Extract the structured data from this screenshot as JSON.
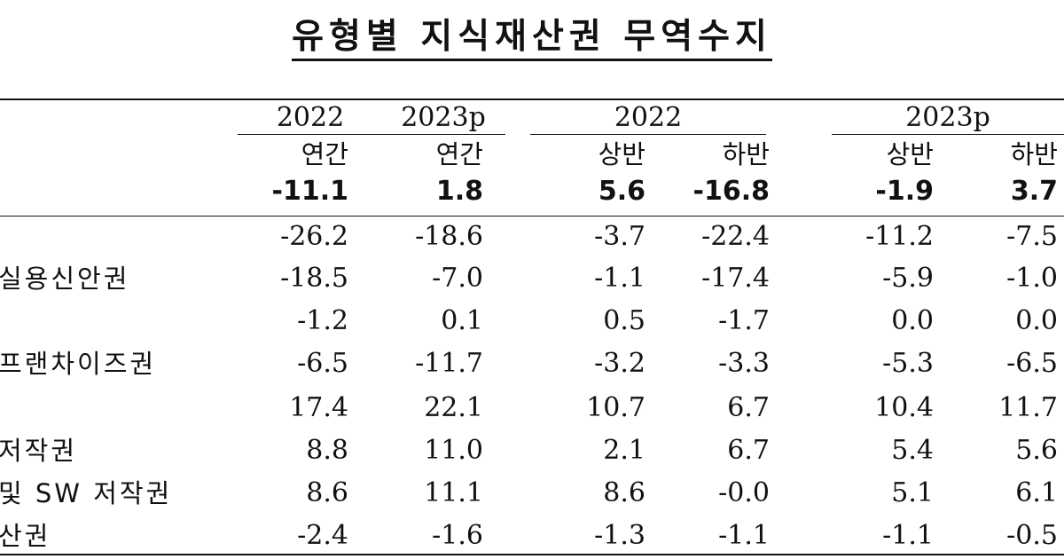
{
  "title": "유형별 지식재산권 무역수지",
  "header": {
    "group1_year": "2022",
    "group1b_year": "2023p",
    "group2_year": "2022",
    "group3_year": "2023p",
    "sub": [
      "연간",
      "연간",
      "상반",
      "하반",
      "상반",
      "하반"
    ]
  },
  "total": [
    "-11.1",
    "1.8",
    "5.6",
    "-16.8",
    "-1.9",
    "3.7"
  ],
  "rows": [
    {
      "label": "",
      "values": [
        "-26.2",
        "-18.6",
        "-3.7",
        "-22.4",
        "-11.2",
        "-7.5"
      ]
    },
    {
      "label": "실용신안권",
      "values": [
        "-18.5",
        "-7.0",
        "-1.1",
        "-17.4",
        "-5.9",
        "-1.0"
      ]
    },
    {
      "label": "",
      "values": [
        "-1.2",
        "0.1",
        "0.5",
        "-1.7",
        "0.0",
        "0.0"
      ]
    },
    {
      "label": "프랜차이즈권",
      "values": [
        "-6.5",
        "-11.7",
        "-3.2",
        "-3.3",
        "-5.3",
        "-6.5"
      ]
    },
    {
      "label": "",
      "values": [
        "17.4",
        "22.1",
        "10.7",
        "6.7",
        "10.4",
        "11.7"
      ]
    },
    {
      "label": "저작권",
      "values": [
        "8.8",
        "11.0",
        "2.1",
        "6.7",
        "5.4",
        "5.6"
      ]
    },
    {
      "label": "및 SW 저작권",
      "values": [
        "8.6",
        "11.1",
        "8.6",
        "-0.0",
        "5.1",
        "6.1"
      ]
    },
    {
      "label": "산권",
      "values": [
        "-2.4",
        "-1.6",
        "-1.3",
        "-1.1",
        "-1.1",
        "-0.5"
      ]
    }
  ]
}
